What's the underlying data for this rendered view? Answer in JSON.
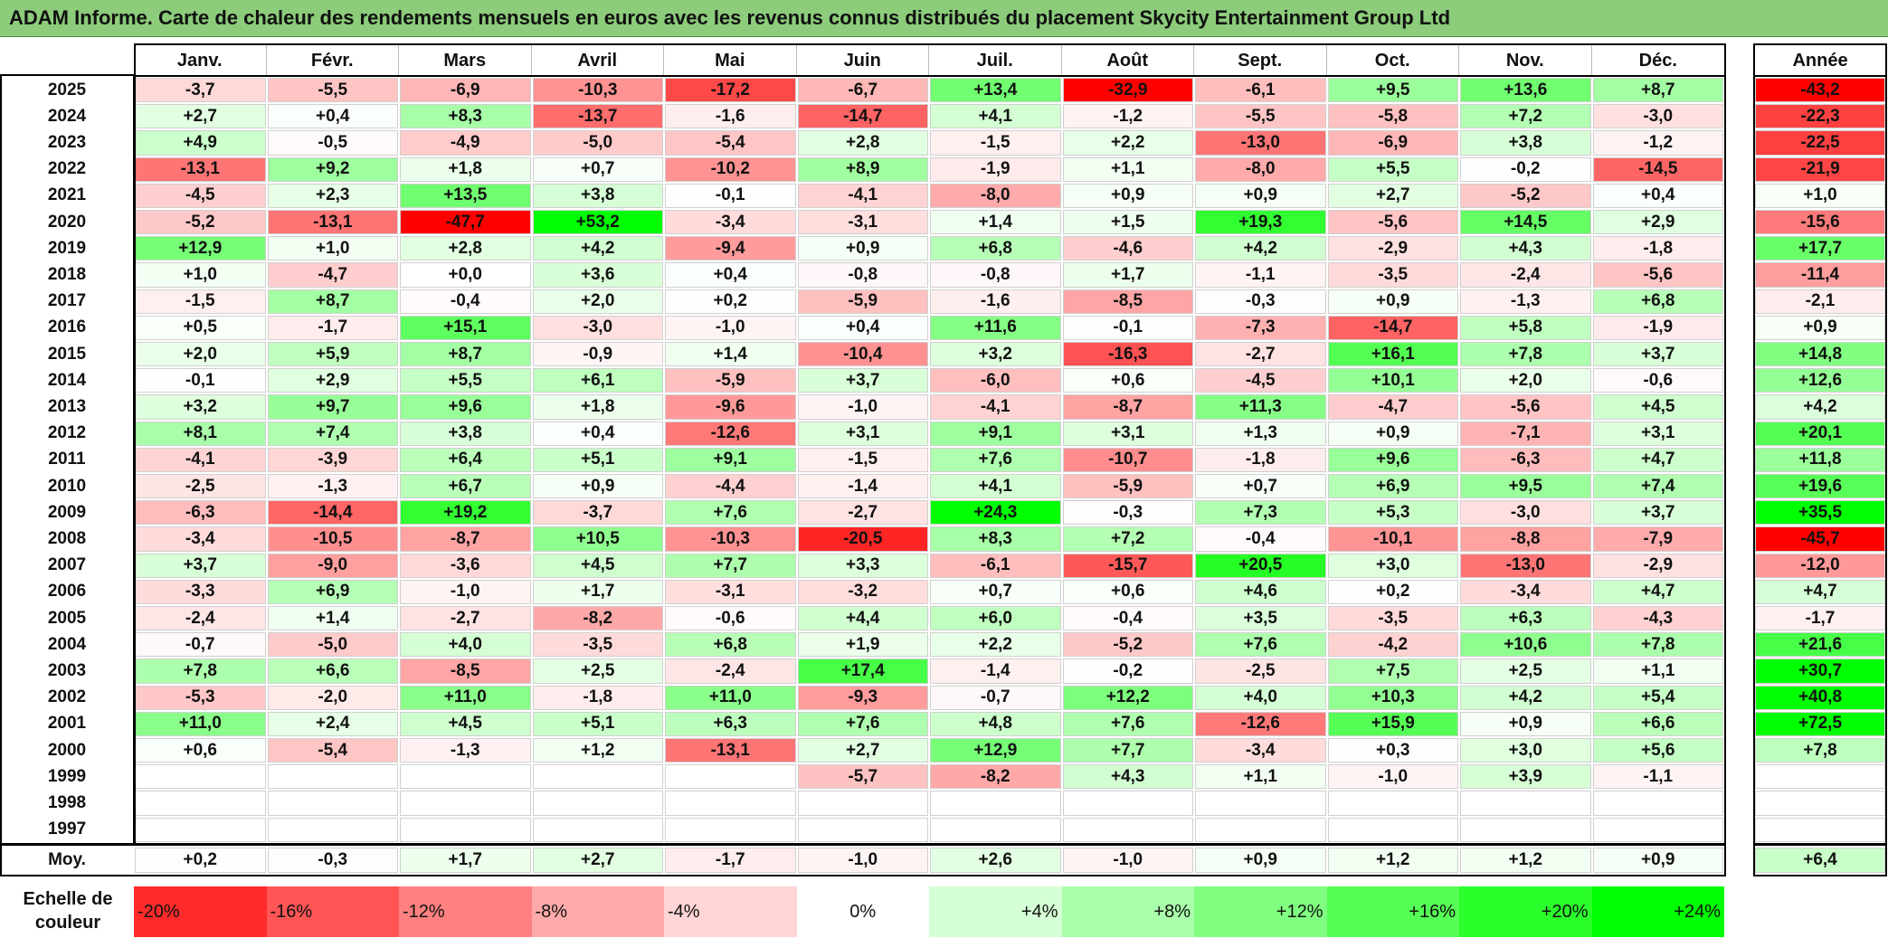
{
  "title": "ADAM Informe. Carte de chaleur des rendements mensuels en euros avec les revenus connus distribués du placement Skycity Entertainment Group Ltd",
  "chart_data": {
    "type": "heatmap",
    "title": "ADAM Informe. Carte de chaleur des rendements mensuels en euros avec les revenus connus distribués du placement Skycity Entertainment Group Ltd",
    "months": [
      "Janv.",
      "Févr.",
      "Mars",
      "Avril",
      "Mai",
      "Juin",
      "Juil.",
      "Août",
      "Sept.",
      "Oct.",
      "Nov.",
      "Déc."
    ],
    "year_header": "Année",
    "avg_label": "Moy.",
    "rows": [
      {
        "year": "2025",
        "values": [
          "-3,7",
          "-5,5",
          "-6,9",
          "-10,3",
          "-17,2",
          "-6,7",
          "+13,4",
          "-32,9",
          "-6,1",
          "+9,5",
          "+13,6",
          "+8,7"
        ],
        "total": "-43,2"
      },
      {
        "year": "2024",
        "values": [
          "+2,7",
          "+0,4",
          "+8,3",
          "-13,7",
          "-1,6",
          "-14,7",
          "+4,1",
          "-1,2",
          "-5,5",
          "-5,8",
          "+7,2",
          "-3,0"
        ],
        "total": "-22,3"
      },
      {
        "year": "2023",
        "values": [
          "+4,9",
          "-0,5",
          "-4,9",
          "-5,0",
          "-5,4",
          "+2,8",
          "-1,5",
          "+2,2",
          "-13,0",
          "-6,9",
          "+3,8",
          "-1,2"
        ],
        "total": "-22,5"
      },
      {
        "year": "2022",
        "values": [
          "-13,1",
          "+9,2",
          "+1,8",
          "+0,7",
          "-10,2",
          "+8,9",
          "-1,9",
          "+1,1",
          "-8,0",
          "+5,5",
          "-0,2",
          "-14,5"
        ],
        "total": "-21,9"
      },
      {
        "year": "2021",
        "values": [
          "-4,5",
          "+2,3",
          "+13,5",
          "+3,8",
          "-0,1",
          "-4,1",
          "-8,0",
          "+0,9",
          "+0,9",
          "+2,7",
          "-5,2",
          "+0,4"
        ],
        "total": "+1,0"
      },
      {
        "year": "2020",
        "values": [
          "-5,2",
          "-13,1",
          "-47,7",
          "+53,2",
          "-3,4",
          "-3,1",
          "+1,4",
          "+1,5",
          "+19,3",
          "-5,6",
          "+14,5",
          "+2,9"
        ],
        "total": "-15,6"
      },
      {
        "year": "2019",
        "values": [
          "+12,9",
          "+1,0",
          "+2,8",
          "+4,2",
          "-9,4",
          "+0,9",
          "+6,8",
          "-4,6",
          "+4,2",
          "-2,9",
          "+4,3",
          "-1,8"
        ],
        "total": "+17,7"
      },
      {
        "year": "2018",
        "values": [
          "+1,0",
          "-4,7",
          "+0,0",
          "+3,6",
          "+0,4",
          "-0,8",
          "-0,8",
          "+1,7",
          "-1,1",
          "-3,5",
          "-2,4",
          "-5,6"
        ],
        "total": "-11,4"
      },
      {
        "year": "2017",
        "values": [
          "-1,5",
          "+8,7",
          "-0,4",
          "+2,0",
          "+0,2",
          "-5,9",
          "-1,6",
          "-8,5",
          "-0,3",
          "+0,9",
          "-1,3",
          "+6,8"
        ],
        "total": "-2,1"
      },
      {
        "year": "2016",
        "values": [
          "+0,5",
          "-1,7",
          "+15,1",
          "-3,0",
          "-1,0",
          "+0,4",
          "+11,6",
          "-0,1",
          "-7,3",
          "-14,7",
          "+5,8",
          "-1,9"
        ],
        "total": "+0,9"
      },
      {
        "year": "2015",
        "values": [
          "+2,0",
          "+5,9",
          "+8,7",
          "-0,9",
          "+1,4",
          "-10,4",
          "+3,2",
          "-16,3",
          "-2,7",
          "+16,1",
          "+7,8",
          "+3,7"
        ],
        "total": "+14,8"
      },
      {
        "year": "2014",
        "values": [
          "-0,1",
          "+2,9",
          "+5,5",
          "+6,1",
          "-5,9",
          "+3,7",
          "-6,0",
          "+0,6",
          "-4,5",
          "+10,1",
          "+2,0",
          "-0,6"
        ],
        "total": "+12,6"
      },
      {
        "year": "2013",
        "values": [
          "+3,2",
          "+9,7",
          "+9,6",
          "+1,8",
          "-9,6",
          "-1,0",
          "-4,1",
          "-8,7",
          "+11,3",
          "-4,7",
          "-5,6",
          "+4,5"
        ],
        "total": "+4,2"
      },
      {
        "year": "2012",
        "values": [
          "+8,1",
          "+7,4",
          "+3,8",
          "+0,4",
          "-12,6",
          "+3,1",
          "+9,1",
          "+3,1",
          "+1,3",
          "+0,9",
          "-7,1",
          "+3,1"
        ],
        "total": "+20,1"
      },
      {
        "year": "2011",
        "values": [
          "-4,1",
          "-3,9",
          "+6,4",
          "+5,1",
          "+9,1",
          "-1,5",
          "+7,6",
          "-10,7",
          "-1,8",
          "+9,6",
          "-6,3",
          "+4,7"
        ],
        "total": "+11,8"
      },
      {
        "year": "2010",
        "values": [
          "-2,5",
          "-1,3",
          "+6,7",
          "+0,9",
          "-4,4",
          "-1,4",
          "+4,1",
          "-5,9",
          "+0,7",
          "+6,9",
          "+9,5",
          "+7,4"
        ],
        "total": "+19,6"
      },
      {
        "year": "2009",
        "values": [
          "-6,3",
          "-14,4",
          "+19,2",
          "-3,7",
          "+7,6",
          "-2,7",
          "+24,3",
          "-0,3",
          "+7,3",
          "+5,3",
          "-3,0",
          "+3,7"
        ],
        "total": "+35,5"
      },
      {
        "year": "2008",
        "values": [
          "-3,4",
          "-10,5",
          "-8,7",
          "+10,5",
          "-10,3",
          "-20,5",
          "+8,3",
          "+7,2",
          "-0,4",
          "-10,1",
          "-8,8",
          "-7,9"
        ],
        "total": "-45,7"
      },
      {
        "year": "2007",
        "values": [
          "+3,7",
          "-9,0",
          "-3,6",
          "+4,5",
          "+7,7",
          "+3,3",
          "-6,1",
          "-15,7",
          "+20,5",
          "+3,0",
          "-13,0",
          "-2,9"
        ],
        "total": "-12,0"
      },
      {
        "year": "2006",
        "values": [
          "-3,3",
          "+6,9",
          "-1,0",
          "+1,7",
          "-3,1",
          "-3,2",
          "+0,7",
          "+0,6",
          "+4,6",
          "+0,2",
          "-3,4",
          "+4,7"
        ],
        "total": "+4,7"
      },
      {
        "year": "2005",
        "values": [
          "-2,4",
          "+1,4",
          "-2,7",
          "-8,2",
          "-0,6",
          "+4,4",
          "+6,0",
          "-0,4",
          "+3,5",
          "-3,5",
          "+6,3",
          "-4,3"
        ],
        "total": "-1,7"
      },
      {
        "year": "2004",
        "values": [
          "-0,7",
          "-5,0",
          "+4,0",
          "-3,5",
          "+6,8",
          "+1,9",
          "+2,2",
          "-5,2",
          "+7,6",
          "-4,2",
          "+10,6",
          "+7,8"
        ],
        "total": "+21,6"
      },
      {
        "year": "2003",
        "values": [
          "+7,8",
          "+6,6",
          "-8,5",
          "+2,5",
          "-2,4",
          "+17,4",
          "-1,4",
          "-0,2",
          "-2,5",
          "+7,5",
          "+2,5",
          "+1,1"
        ],
        "total": "+30,7"
      },
      {
        "year": "2002",
        "values": [
          "-5,3",
          "-2,0",
          "+11,0",
          "-1,8",
          "+11,0",
          "-9,3",
          "-0,7",
          "+12,2",
          "+4,0",
          "+10,3",
          "+4,2",
          "+5,4"
        ],
        "total": "+40,8"
      },
      {
        "year": "2001",
        "values": [
          "+11,0",
          "+2,4",
          "+4,5",
          "+5,1",
          "+6,3",
          "+7,6",
          "+4,8",
          "+7,6",
          "-12,6",
          "+15,9",
          "+0,9",
          "+6,6"
        ],
        "total": "+72,5"
      },
      {
        "year": "2000",
        "values": [
          "+0,6",
          "-5,4",
          "-1,3",
          "+1,2",
          "-13,1",
          "+2,7",
          "+12,9",
          "+7,7",
          "-3,4",
          "+0,3",
          "+3,0",
          "+5,6"
        ],
        "total": "+7,8"
      },
      {
        "year": "1999",
        "values": [
          "",
          "",
          "",
          "",
          "",
          "-5,7",
          "-8,2",
          "+4,3",
          "+1,1",
          "-1,0",
          "+3,9",
          "-1,1"
        ],
        "total": ""
      },
      {
        "year": "1998",
        "values": [
          "",
          "",
          "",
          "",
          "",
          "",
          "",
          "",
          "",
          "",
          "",
          ""
        ],
        "total": ""
      },
      {
        "year": "1997",
        "values": [
          "",
          "",
          "",
          "",
          "",
          "",
          "",
          "",
          "",
          "",
          "",
          ""
        ],
        "total": ""
      }
    ],
    "averages": {
      "values": [
        "+0,2",
        "-0,3",
        "+1,7",
        "+2,7",
        "-1,7",
        "-1,0",
        "+2,6",
        "-1,0",
        "+0,9",
        "+1,2",
        "+1,2",
        "+0,9"
      ],
      "total": "+6,4"
    },
    "scale": {
      "label": "Echelle de couleur",
      "items": [
        {
          "label": "-20%",
          "value": -20
        },
        {
          "label": "-16%",
          "value": -16
        },
        {
          "label": "-12%",
          "value": -12
        },
        {
          "label": "-8%",
          "value": -8
        },
        {
          "label": "-4%",
          "value": -4
        },
        {
          "label": "0%",
          "value": 0
        },
        {
          "label": "+4%",
          "value": 4
        },
        {
          "label": "+8%",
          "value": 8
        },
        {
          "label": "+12%",
          "value": 12
        },
        {
          "label": "+16%",
          "value": 16
        },
        {
          "label": "+20%",
          "value": 20
        },
        {
          "label": "+24%",
          "value": 24
        }
      ]
    },
    "colors": {
      "negative": "#ff0000",
      "positive": "#00ff00",
      "neutral": "#ffffff"
    }
  }
}
